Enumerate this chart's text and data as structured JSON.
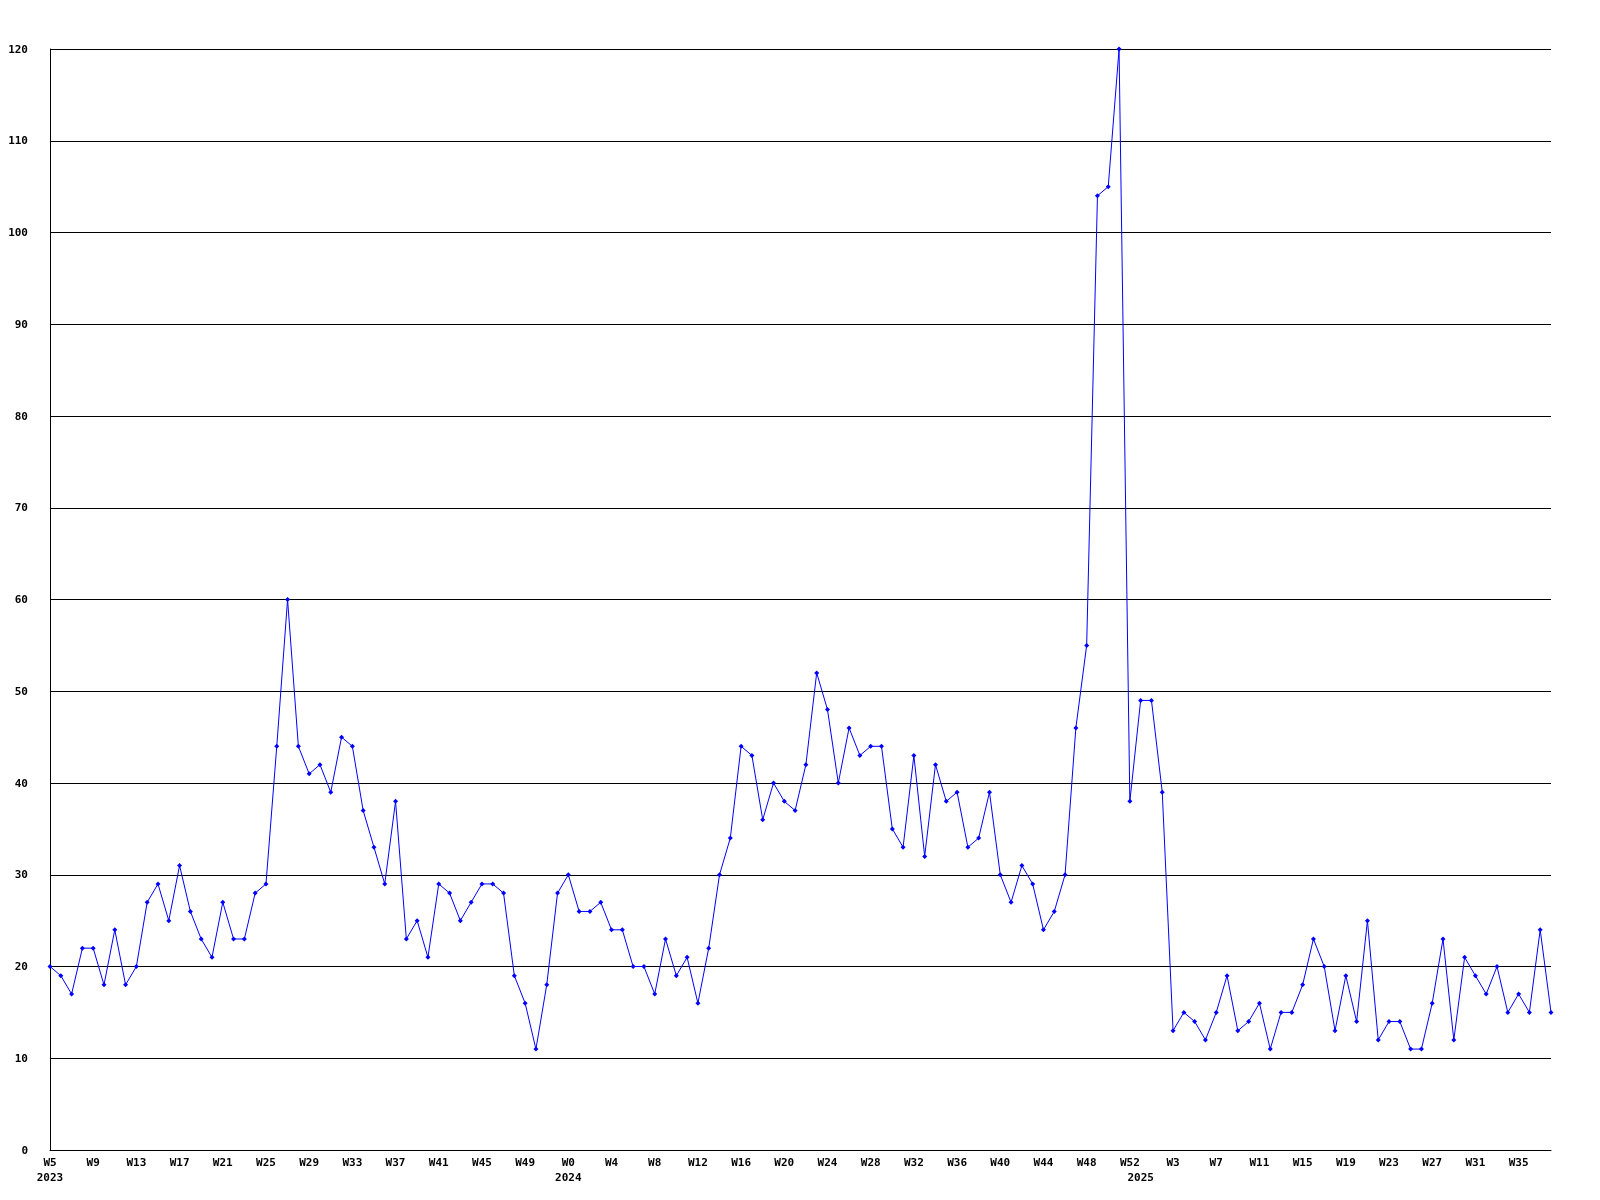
{
  "chart_data": {
    "type": "line",
    "categories": [
      "W5\n2023",
      null,
      null,
      null,
      "W9",
      null,
      null,
      null,
      "W13",
      null,
      null,
      null,
      "W17",
      null,
      null,
      null,
      "W21",
      null,
      null,
      null,
      "W25",
      null,
      null,
      null,
      "W29",
      null,
      null,
      null,
      "W33",
      null,
      null,
      null,
      "W37",
      null,
      null,
      null,
      "W41",
      null,
      null,
      null,
      "W45",
      null,
      null,
      null,
      "W49",
      null,
      null,
      null,
      "W0\n2024",
      null,
      null,
      null,
      "W4",
      null,
      null,
      null,
      "W8",
      null,
      null,
      null,
      "W12",
      null,
      null,
      null,
      "W16",
      null,
      null,
      null,
      "W20",
      null,
      null,
      null,
      "W24",
      null,
      null,
      null,
      "W28",
      null,
      null,
      null,
      "W32",
      null,
      null,
      null,
      "W36",
      null,
      null,
      null,
      "W40",
      null,
      null,
      null,
      "W44",
      null,
      null,
      null,
      "W48",
      null,
      null,
      null,
      "W52",
      "\n2025",
      null,
      null,
      "W3",
      null,
      null,
      null,
      "W7",
      null,
      null,
      null,
      "W11",
      null,
      null,
      null,
      "W15",
      null,
      null,
      null,
      "W19",
      null,
      null,
      null,
      "W23",
      null,
      null,
      null,
      "W27",
      null,
      null,
      null,
      "W31",
      null,
      null,
      null,
      "W35",
      null,
      null,
      null
    ],
    "series": [
      {
        "color": "#0000ff",
        "values": [
          20,
          19,
          17,
          22,
          22,
          18,
          24,
          18,
          20,
          27,
          29,
          25,
          31,
          26,
          23,
          21,
          27,
          23,
          23,
          28,
          29,
          44,
          60,
          44,
          41,
          42,
          39,
          45,
          44,
          37,
          33,
          29,
          38,
          23,
          25,
          21,
          29,
          28,
          25,
          27,
          29,
          29,
          28,
          19,
          16,
          11,
          18,
          28,
          30,
          26,
          26,
          27,
          24,
          24,
          20,
          20,
          17,
          23,
          19,
          21,
          16,
          22,
          30,
          34,
          44,
          43,
          36,
          40,
          38,
          37,
          42,
          52,
          48,
          40,
          46,
          43,
          44,
          44,
          35,
          33,
          43,
          32,
          42,
          38,
          39,
          33,
          34,
          39,
          30,
          27,
          31,
          29,
          24,
          26,
          30,
          46,
          55,
          104,
          105,
          120,
          38,
          49,
          49,
          39,
          13,
          15,
          14,
          12,
          15,
          19,
          13,
          14,
          16,
          11,
          15,
          15,
          18,
          23,
          20,
          13,
          19,
          14,
          25,
          12,
          14,
          14,
          11,
          11,
          16,
          23,
          12,
          21,
          19,
          17,
          20,
          15,
          17,
          15,
          24,
          15
        ]
      }
    ],
    "ylim": [
      0,
      120
    ],
    "yticks": [
      0,
      10,
      20,
      30,
      40,
      50,
      60,
      70,
      80,
      90,
      100,
      110,
      120
    ],
    "grid": "y",
    "marker": "diamond",
    "line_style": "solid"
  }
}
